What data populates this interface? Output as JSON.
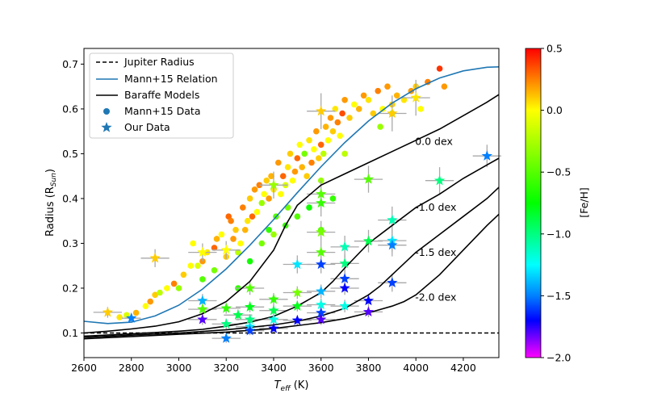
{
  "chart_data": {
    "type": "scatter",
    "xlabel_main": "T",
    "xlabel_sub": "eff",
    "xlabel_unit": " (K)",
    "ylabel_main": "Radius (R",
    "ylabel_sub": "Sun",
    "ylabel_close": ")",
    "xlim": [
      2600,
      4350
    ],
    "ylim": [
      0.045,
      0.735
    ],
    "xticks": [
      2600,
      2800,
      3000,
      3200,
      3400,
      3600,
      3800,
      4000,
      4200
    ],
    "yticks": [
      0.1,
      0.2,
      0.3,
      0.4,
      0.5,
      0.6,
      0.7
    ],
    "ytick_labels": [
      "0.1",
      "0.2",
      "0.3",
      "0.4",
      "0.5",
      "0.6",
      "0.7"
    ],
    "legend": {
      "position": "top-left",
      "entries": [
        "Jupiter Radius",
        "Mann+15 Relation",
        "Baraffe Models",
        "Mann+15 Data",
        "Our Data"
      ]
    },
    "colorbar": {
      "label": "[Fe/H]",
      "range": [
        -2.0,
        0.5
      ],
      "ticks": [
        0.5,
        0.0,
        -0.5,
        -1.0,
        -1.5,
        -2.0
      ],
      "tick_labels": [
        "0.5",
        "0.0",
        "−0.5",
        "−1.0",
        "−1.5",
        "−2.0"
      ]
    },
    "jupiter_radius": 0.1,
    "mann15_relation": {
      "color": "#1f77b4",
      "x": [
        2600,
        2700,
        2800,
        2900,
        3000,
        3100,
        3200,
        3300,
        3400,
        3500,
        3600,
        3700,
        3800,
        3900,
        4000,
        4100,
        4200,
        4300,
        4350
      ],
      "y": [
        0.126,
        0.121,
        0.124,
        0.138,
        0.162,
        0.198,
        0.243,
        0.296,
        0.353,
        0.413,
        0.471,
        0.525,
        0.573,
        0.613,
        0.645,
        0.669,
        0.685,
        0.693,
        0.694
      ]
    },
    "baraffe_models": [
      {
        "label": "0.0 dex",
        "x": [
          2600,
          2700,
          2800,
          2900,
          3000,
          3100,
          3200,
          3300,
          3400,
          3450,
          3500,
          3600,
          3700,
          3800,
          3900,
          4000,
          4100,
          4200,
          4300,
          4350
        ],
        "y": [
          0.1,
          0.104,
          0.109,
          0.115,
          0.125,
          0.143,
          0.17,
          0.215,
          0.285,
          0.34,
          0.385,
          0.43,
          0.455,
          0.48,
          0.505,
          0.53,
          0.555,
          0.585,
          0.615,
          0.632
        ]
      },
      {
        "label": "-1.0 dex",
        "x": [
          2600,
          2800,
          3000,
          3100,
          3200,
          3300,
          3400,
          3500,
          3600,
          3650,
          3700,
          3800,
          3900,
          4000,
          4100,
          4200,
          4300,
          4350
        ],
        "y": [
          0.093,
          0.098,
          0.104,
          0.108,
          0.115,
          0.124,
          0.137,
          0.16,
          0.19,
          0.215,
          0.245,
          0.3,
          0.34,
          0.38,
          0.41,
          0.445,
          0.475,
          0.49
        ]
      },
      {
        "label": "-1.5 dex",
        "x": [
          2600,
          2800,
          3000,
          3200,
          3400,
          3500,
          3600,
          3700,
          3800,
          3850,
          3900,
          4000,
          4100,
          4200,
          4300,
          4350
        ],
        "y": [
          0.09,
          0.095,
          0.1,
          0.107,
          0.118,
          0.126,
          0.138,
          0.155,
          0.185,
          0.205,
          0.23,
          0.28,
          0.32,
          0.36,
          0.4,
          0.425
        ]
      },
      {
        "label": "-2.0 dex",
        "x": [
          2600,
          2800,
          3000,
          3200,
          3400,
          3600,
          3700,
          3800,
          3900,
          3950,
          4000,
          4100,
          4200,
          4300,
          4350
        ],
        "y": [
          0.087,
          0.092,
          0.097,
          0.102,
          0.11,
          0.123,
          0.132,
          0.145,
          0.16,
          0.17,
          0.185,
          0.23,
          0.285,
          0.34,
          0.365
        ]
      }
    ],
    "model_labels": [
      {
        "text": "0.0 dex",
        "x": 4000,
        "y": 0.52
      },
      {
        "text": "-1.0 dex",
        "x": 4000,
        "y": 0.373
      },
      {
        "text": "-1.5 dex",
        "x": 4000,
        "y": 0.272
      },
      {
        "text": "-2.0 dex",
        "x": 4000,
        "y": 0.172
      }
    ],
    "mann15_data": [
      [
        2750,
        0.135,
        0.05
      ],
      [
        2780,
        0.14,
        -0.1
      ],
      [
        2820,
        0.145,
        0.15
      ],
      [
        2860,
        0.16,
        0.0
      ],
      [
        2880,
        0.17,
        0.2
      ],
      [
        2900,
        0.185,
        0.1
      ],
      [
        2920,
        0.19,
        -0.2
      ],
      [
        2950,
        0.2,
        0.0
      ],
      [
        2980,
        0.21,
        0.25
      ],
      [
        3000,
        0.2,
        -0.3
      ],
      [
        3020,
        0.23,
        0.1
      ],
      [
        3050,
        0.25,
        0.0
      ],
      [
        3060,
        0.3,
        0.0
      ],
      [
        3080,
        0.25,
        -0.1
      ],
      [
        3100,
        0.26,
        0.2
      ],
      [
        3120,
        0.28,
        0.05
      ],
      [
        3150,
        0.29,
        0.3
      ],
      [
        3160,
        0.31,
        0.15
      ],
      [
        3180,
        0.32,
        0.0
      ],
      [
        3200,
        0.27,
        0.1
      ],
      [
        3210,
        0.36,
        0.3
      ],
      [
        3220,
        0.35,
        0.25
      ],
      [
        3230,
        0.31,
        0.2
      ],
      [
        3240,
        0.33,
        0.1
      ],
      [
        3250,
        0.28,
        -0.2
      ],
      [
        3260,
        0.3,
        0.0
      ],
      [
        3270,
        0.38,
        0.25
      ],
      [
        3280,
        0.33,
        0.15
      ],
      [
        3290,
        0.35,
        0.05
      ],
      [
        3300,
        0.4,
        0.1
      ],
      [
        3310,
        0.36,
        0.3
      ],
      [
        3320,
        0.42,
        0.2
      ],
      [
        3330,
        0.37,
        0.0
      ],
      [
        3340,
        0.43,
        0.25
      ],
      [
        3350,
        0.39,
        -0.3
      ],
      [
        3360,
        0.41,
        0.0
      ],
      [
        3370,
        0.44,
        0.1
      ],
      [
        3380,
        0.4,
        0.2
      ],
      [
        3390,
        0.45,
        0.15
      ],
      [
        3400,
        0.42,
        0.05
      ],
      [
        3410,
        0.36,
        -0.5
      ],
      [
        3420,
        0.48,
        0.2
      ],
      [
        3430,
        0.41,
        0.0
      ],
      [
        3440,
        0.45,
        0.3
      ],
      [
        3450,
        0.43,
        -0.1
      ],
      [
        3460,
        0.47,
        0.05
      ],
      [
        3470,
        0.5,
        0.1
      ],
      [
        3480,
        0.44,
        0.0
      ],
      [
        3490,
        0.46,
        0.2
      ],
      [
        3500,
        0.49,
        0.3
      ],
      [
        3510,
        0.52,
        0.0
      ],
      [
        3520,
        0.47,
        0.15
      ],
      [
        3530,
        0.5,
        -0.4
      ],
      [
        3540,
        0.45,
        0.1
      ],
      [
        3550,
        0.53,
        0.05
      ],
      [
        3560,
        0.48,
        0.25
      ],
      [
        3570,
        0.51,
        0.0
      ],
      [
        3580,
        0.55,
        0.2
      ],
      [
        3590,
        0.49,
        0.1
      ],
      [
        3600,
        0.52,
        0.3
      ],
      [
        3610,
        0.5,
        -0.2
      ],
      [
        3620,
        0.56,
        0.15
      ],
      [
        3630,
        0.53,
        0.0
      ],
      [
        3640,
        0.58,
        0.2
      ],
      [
        3650,
        0.55,
        0.1
      ],
      [
        3660,
        0.6,
        0.05
      ],
      [
        3670,
        0.57,
        0.25
      ],
      [
        3680,
        0.54,
        0.0
      ],
      [
        3690,
        0.59,
        0.35
      ],
      [
        3700,
        0.62,
        0.2
      ],
      [
        3720,
        0.58,
        0.1
      ],
      [
        3740,
        0.61,
        0.0
      ],
      [
        3760,
        0.6,
        0.15
      ],
      [
        3780,
        0.63,
        0.2
      ],
      [
        3800,
        0.62,
        0.05
      ],
      [
        3820,
        0.59,
        0.1
      ],
      [
        3840,
        0.64,
        0.25
      ],
      [
        3860,
        0.6,
        0.0
      ],
      [
        3880,
        0.65,
        0.2
      ],
      [
        3900,
        0.61,
        0.1
      ],
      [
        3920,
        0.63,
        0.15
      ],
      [
        3950,
        0.62,
        0.05
      ],
      [
        3980,
        0.64,
        0.2
      ],
      [
        4000,
        0.65,
        0.1
      ],
      [
        4020,
        0.6,
        0.0
      ],
      [
        4050,
        0.66,
        0.25
      ],
      [
        4100,
        0.69,
        0.4
      ],
      [
        4120,
        0.65,
        0.2
      ],
      [
        3350,
        0.3,
        -0.4
      ],
      [
        3400,
        0.32,
        -0.3
      ],
      [
        3450,
        0.34,
        -0.6
      ],
      [
        3500,
        0.36,
        -0.5
      ],
      [
        3550,
        0.38,
        -0.7
      ],
      [
        3600,
        0.33,
        -0.5
      ],
      [
        3650,
        0.4,
        -0.6
      ],
      [
        3100,
        0.22,
        -0.5
      ],
      [
        3150,
        0.24,
        -0.4
      ],
      [
        3250,
        0.2,
        -0.6
      ],
      [
        3300,
        0.26,
        -0.7
      ],
      [
        3380,
        0.33,
        -0.6
      ],
      [
        3460,
        0.38,
        -0.4
      ],
      [
        3600,
        0.44,
        -0.3
      ],
      [
        3700,
        0.5,
        -0.2
      ],
      [
        3850,
        0.56,
        -0.3
      ],
      [
        3900,
        0.59,
        -0.4
      ]
    ],
    "our_data": [
      [
        2700,
        0.146,
        0.1,
        60,
        0.012
      ],
      [
        2800,
        0.133,
        -1.5,
        40,
        0.01
      ],
      [
        2900,
        0.267,
        0.1,
        60,
        0.02
      ],
      [
        3100,
        0.172,
        -1.4,
        60,
        0.015
      ],
      [
        3100,
        0.153,
        -0.5,
        60,
        0.012
      ],
      [
        3100,
        0.13,
        -1.8,
        60,
        0.012
      ],
      [
        3100,
        0.28,
        0.0,
        60,
        0.02
      ],
      [
        3200,
        0.088,
        -1.5,
        60,
        0.01
      ],
      [
        3200,
        0.12,
        -1.0,
        60,
        0.012
      ],
      [
        3200,
        0.155,
        -0.6,
        60,
        0.012
      ],
      [
        3200,
        0.285,
        0.0,
        60,
        0.02
      ],
      [
        3250,
        0.14,
        -0.9,
        60,
        0.012
      ],
      [
        3300,
        0.114,
        -1.3,
        60,
        0.01
      ],
      [
        3300,
        0.13,
        -1.0,
        60,
        0.012
      ],
      [
        3300,
        0.158,
        -0.8,
        60,
        0.012
      ],
      [
        3300,
        0.2,
        -0.5,
        60,
        0.015
      ],
      [
        3300,
        0.105,
        -1.6,
        60,
        0.01
      ],
      [
        3400,
        0.175,
        -0.6,
        60,
        0.014
      ],
      [
        3400,
        0.15,
        -0.9,
        60,
        0.012
      ],
      [
        3400,
        0.13,
        -1.2,
        60,
        0.012
      ],
      [
        3400,
        0.11,
        -1.7,
        60,
        0.01
      ],
      [
        3400,
        0.43,
        -0.3,
        60,
        0.03
      ],
      [
        3500,
        0.253,
        -1.3,
        60,
        0.02
      ],
      [
        3500,
        0.19,
        -0.4,
        60,
        0.014
      ],
      [
        3500,
        0.16,
        -0.8,
        60,
        0.012
      ],
      [
        3500,
        0.128,
        -1.7,
        60,
        0.01
      ],
      [
        3600,
        0.39,
        -0.6,
        60,
        0.03
      ],
      [
        3600,
        0.325,
        -0.4,
        60,
        0.025
      ],
      [
        3600,
        0.28,
        -0.5,
        60,
        0.02
      ],
      [
        3600,
        0.253,
        -1.6,
        60,
        0.02
      ],
      [
        3600,
        0.193,
        -1.4,
        60,
        0.015
      ],
      [
        3600,
        0.163,
        -1.2,
        60,
        0.014
      ],
      [
        3600,
        0.145,
        -1.6,
        60,
        0.012
      ],
      [
        3600,
        0.13,
        -1.8,
        60,
        0.012
      ],
      [
        3600,
        0.41,
        -0.5,
        60,
        0.03
      ],
      [
        3700,
        0.292,
        -1.1,
        60,
        0.025
      ],
      [
        3700,
        0.255,
        -1.0,
        60,
        0.02
      ],
      [
        3700,
        0.221,
        -1.6,
        60,
        0.02
      ],
      [
        3700,
        0.2,
        -1.7,
        60,
        0.015
      ],
      [
        3700,
        0.16,
        -1.2,
        60,
        0.014
      ],
      [
        3800,
        0.443,
        -0.5,
        60,
        0.03
      ],
      [
        3800,
        0.305,
        -0.9,
        60,
        0.025
      ],
      [
        3800,
        0.172,
        -1.7,
        60,
        0.015
      ],
      [
        3800,
        0.147,
        -1.8,
        60,
        0.012
      ],
      [
        3900,
        0.352,
        -1.1,
        60,
        0.03
      ],
      [
        3900,
        0.306,
        -1.3,
        60,
        0.025
      ],
      [
        3900,
        0.296,
        -1.5,
        60,
        0.025
      ],
      [
        3900,
        0.212,
        -1.6,
        60,
        0.02
      ],
      [
        3900,
        0.59,
        0.1,
        60,
        0.04
      ],
      [
        3600,
        0.595,
        0.1,
        60,
        0.04
      ],
      [
        4000,
        0.625,
        0.05,
        60,
        0.04
      ],
      [
        4100,
        0.44,
        -1.0,
        60,
        0.03
      ],
      [
        4300,
        0.495,
        -1.5,
        60,
        0.025
      ]
    ]
  }
}
